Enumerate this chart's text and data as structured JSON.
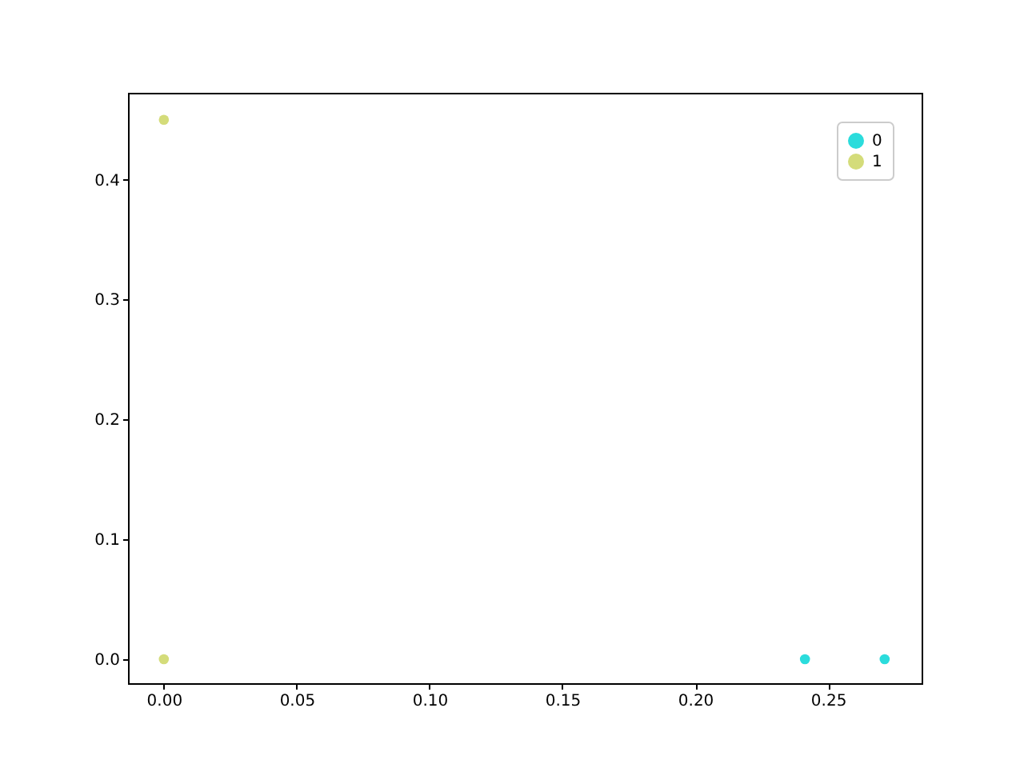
{
  "chart_data": {
    "type": "scatter",
    "marker": "circle",
    "grid": false,
    "legend": "top right",
    "xlim": [
      -0.0135,
      0.2852
    ],
    "xticks": [
      {
        "value": 0,
        "label": "0.00"
      },
      {
        "value": 0.05,
        "label": "0.05"
      },
      {
        "value": 0.1,
        "label": "0.10"
      },
      {
        "value": 0.15,
        "label": "0.15"
      },
      {
        "value": 0.2,
        "label": "0.20"
      },
      {
        "value": 0.25,
        "label": "0.25"
      }
    ],
    "ylim": [
      -0.02,
      0.4725
    ],
    "yticks": [
      {
        "value": 0,
        "label": "0.0"
      },
      {
        "value": 0.1,
        "label": "0.1"
      },
      {
        "value": 0.2,
        "label": "0.2"
      },
      {
        "value": 0.3,
        "label": "0.3"
      },
      {
        "value": 0.4,
        "label": "0.4"
      }
    ],
    "series": [
      {
        "name": "0",
        "color": "#2bdcdc",
        "x": [
          0.2413,
          0.2713
        ],
        "values": [
          0,
          0
        ]
      },
      {
        "name": "1",
        "color": "#d4dc7a",
        "x": [
          0,
          0
        ],
        "values": [
          0.45,
          0
        ]
      }
    ]
  }
}
